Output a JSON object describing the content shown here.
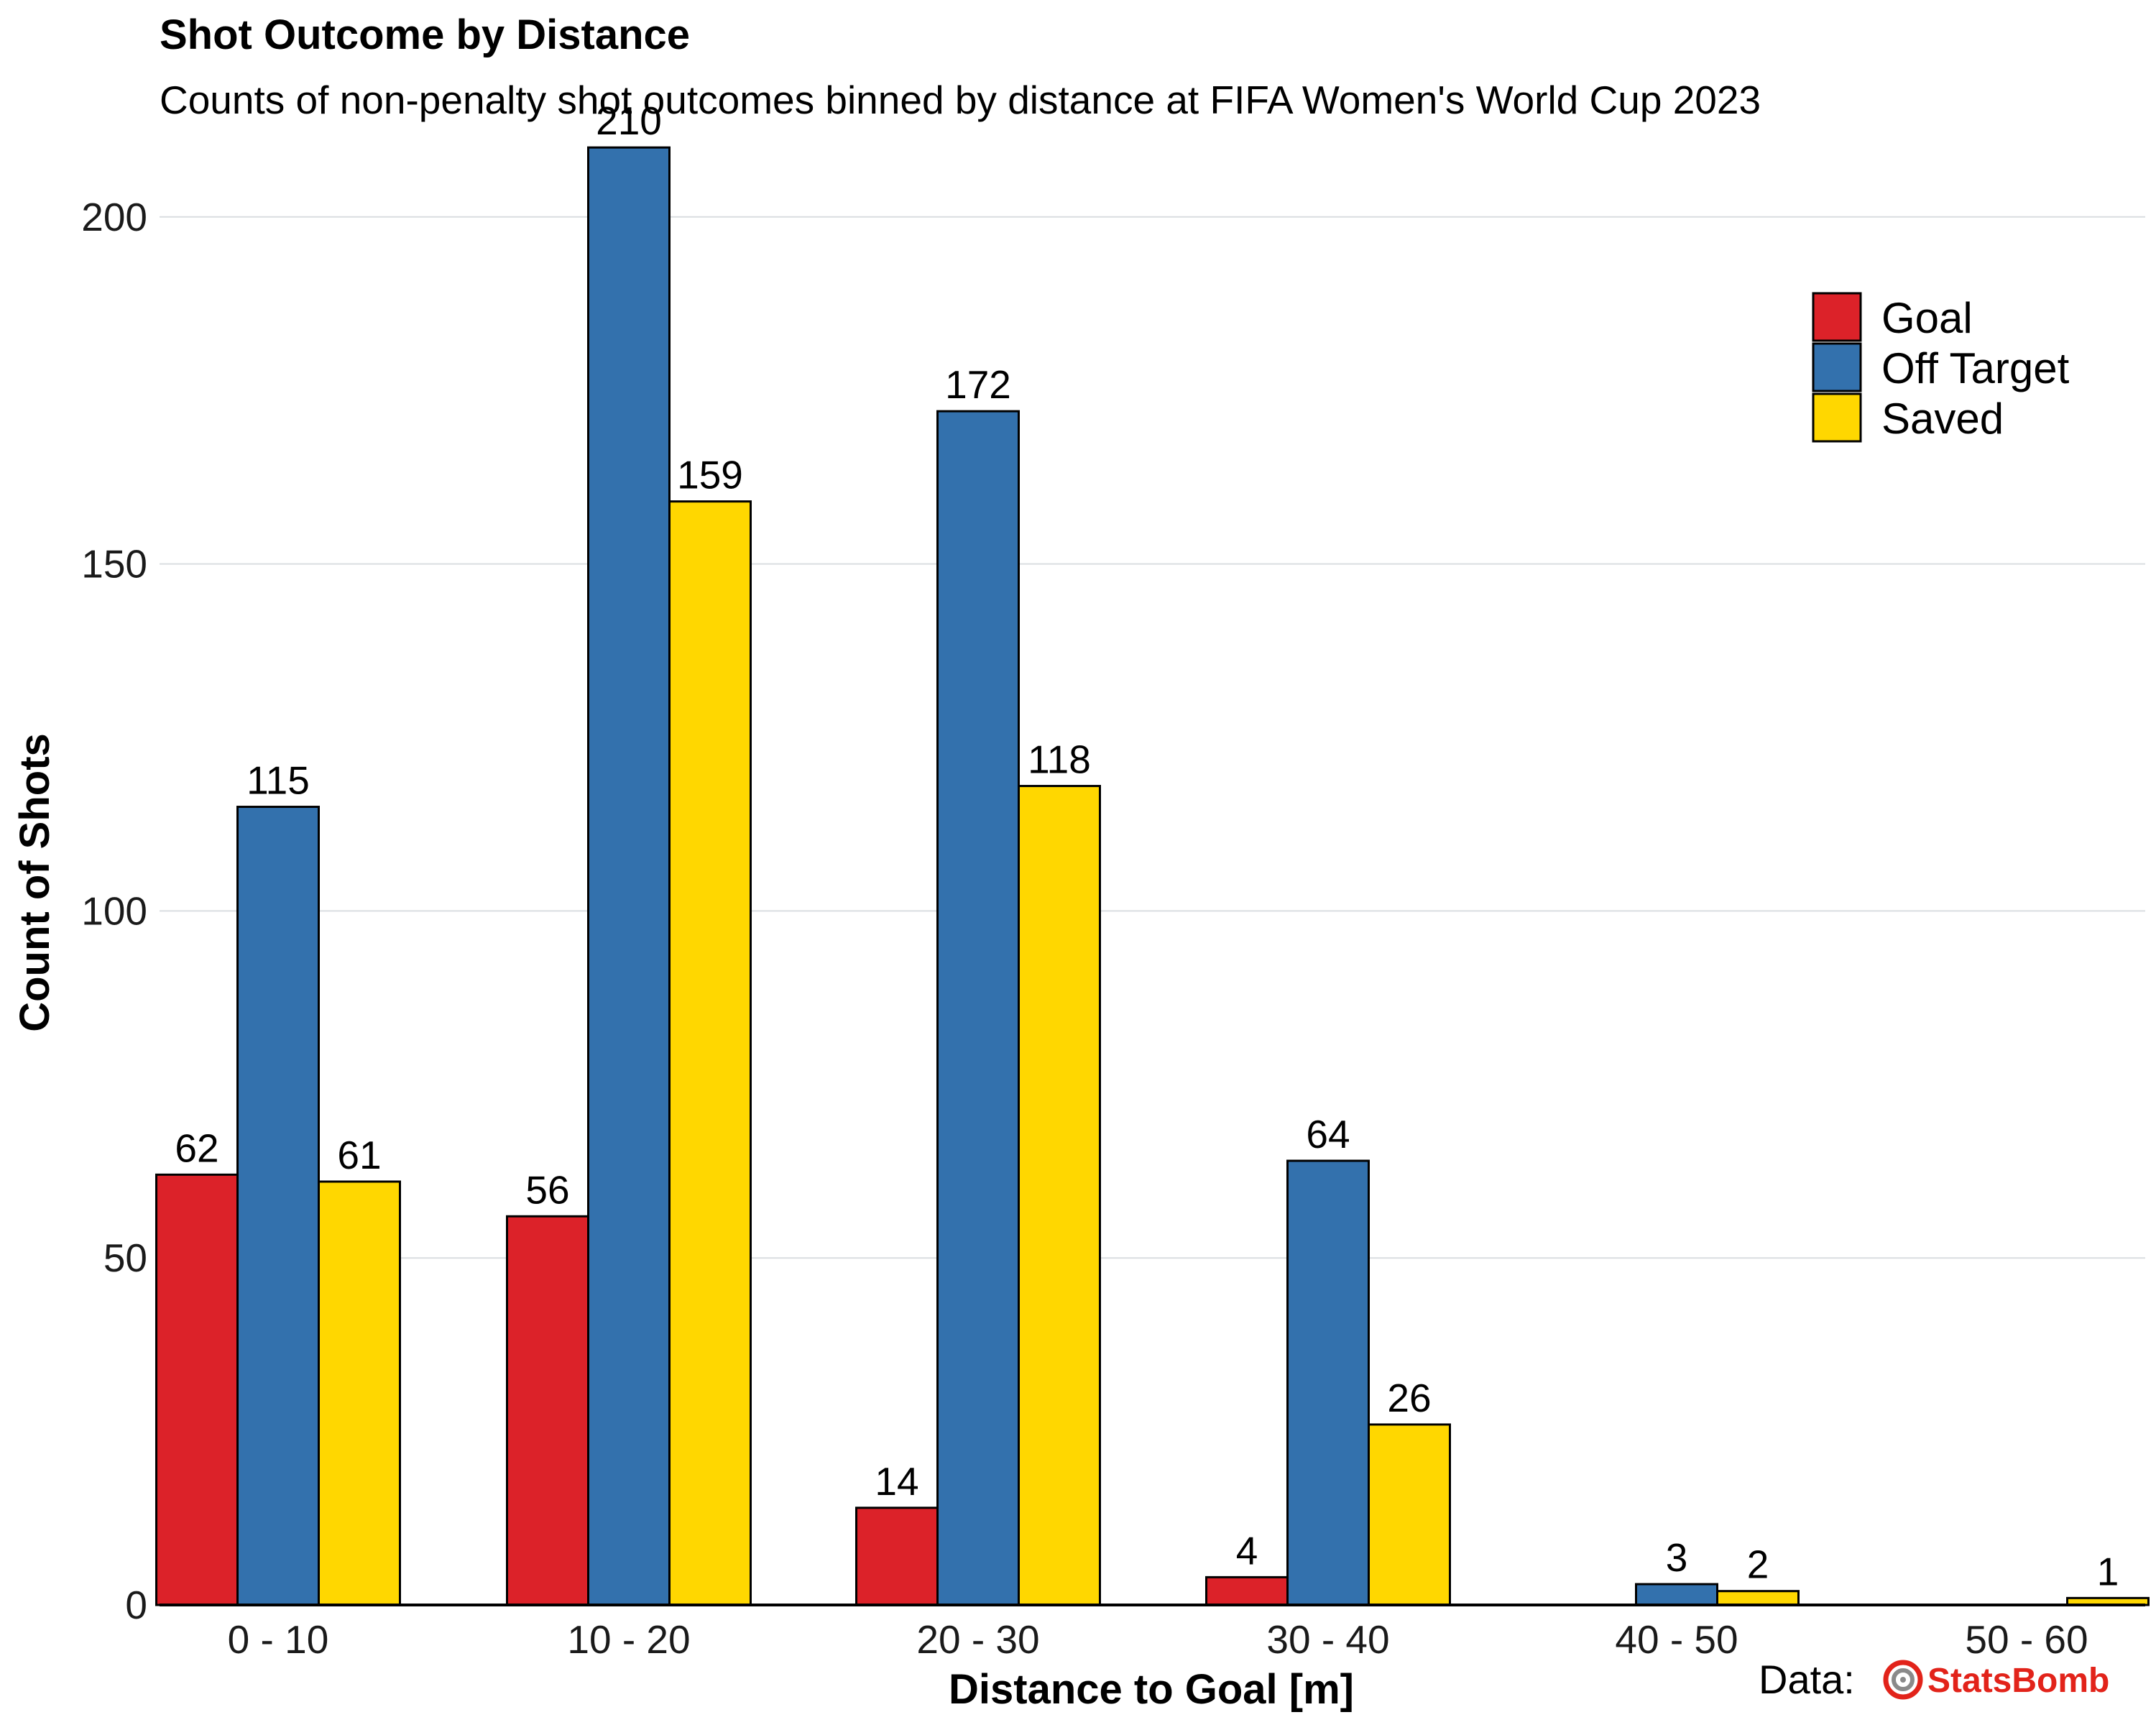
{
  "chart_data": {
    "type": "bar",
    "title": "Shot Outcome by Distance",
    "subtitle": "Counts of non-penalty shot outcomes binned by distance at FIFA Women's World Cup 2023",
    "xlabel": "Distance to Goal [m]",
    "ylabel": "Count of Shots",
    "categories": [
      "0 - 10",
      "10 - 20",
      "20 - 30",
      "30 - 40",
      "40 - 50",
      "50 - 60"
    ],
    "series": [
      {
        "name": "Goal",
        "color": "#DC2229",
        "values": [
          62,
          56,
          14,
          4,
          null,
          null
        ]
      },
      {
        "name": "Off Target",
        "color": "#3371AD",
        "values": [
          115,
          210,
          172,
          64,
          3,
          null
        ]
      },
      {
        "name": "Saved",
        "color": "#FFD700",
        "values": [
          61,
          159,
          118,
          26,
          2,
          1
        ]
      }
    ],
    "yticks": [
      0,
      50,
      100,
      150,
      200
    ],
    "ylim": [
      0,
      220
    ],
    "grid": "horizontal",
    "legend_position": "top-right"
  },
  "credit": {
    "prefix": "Data:",
    "brand": "StatsBomb",
    "brand_color": "#E2231A",
    "logo_icon": "statsbomb-target-icon"
  }
}
